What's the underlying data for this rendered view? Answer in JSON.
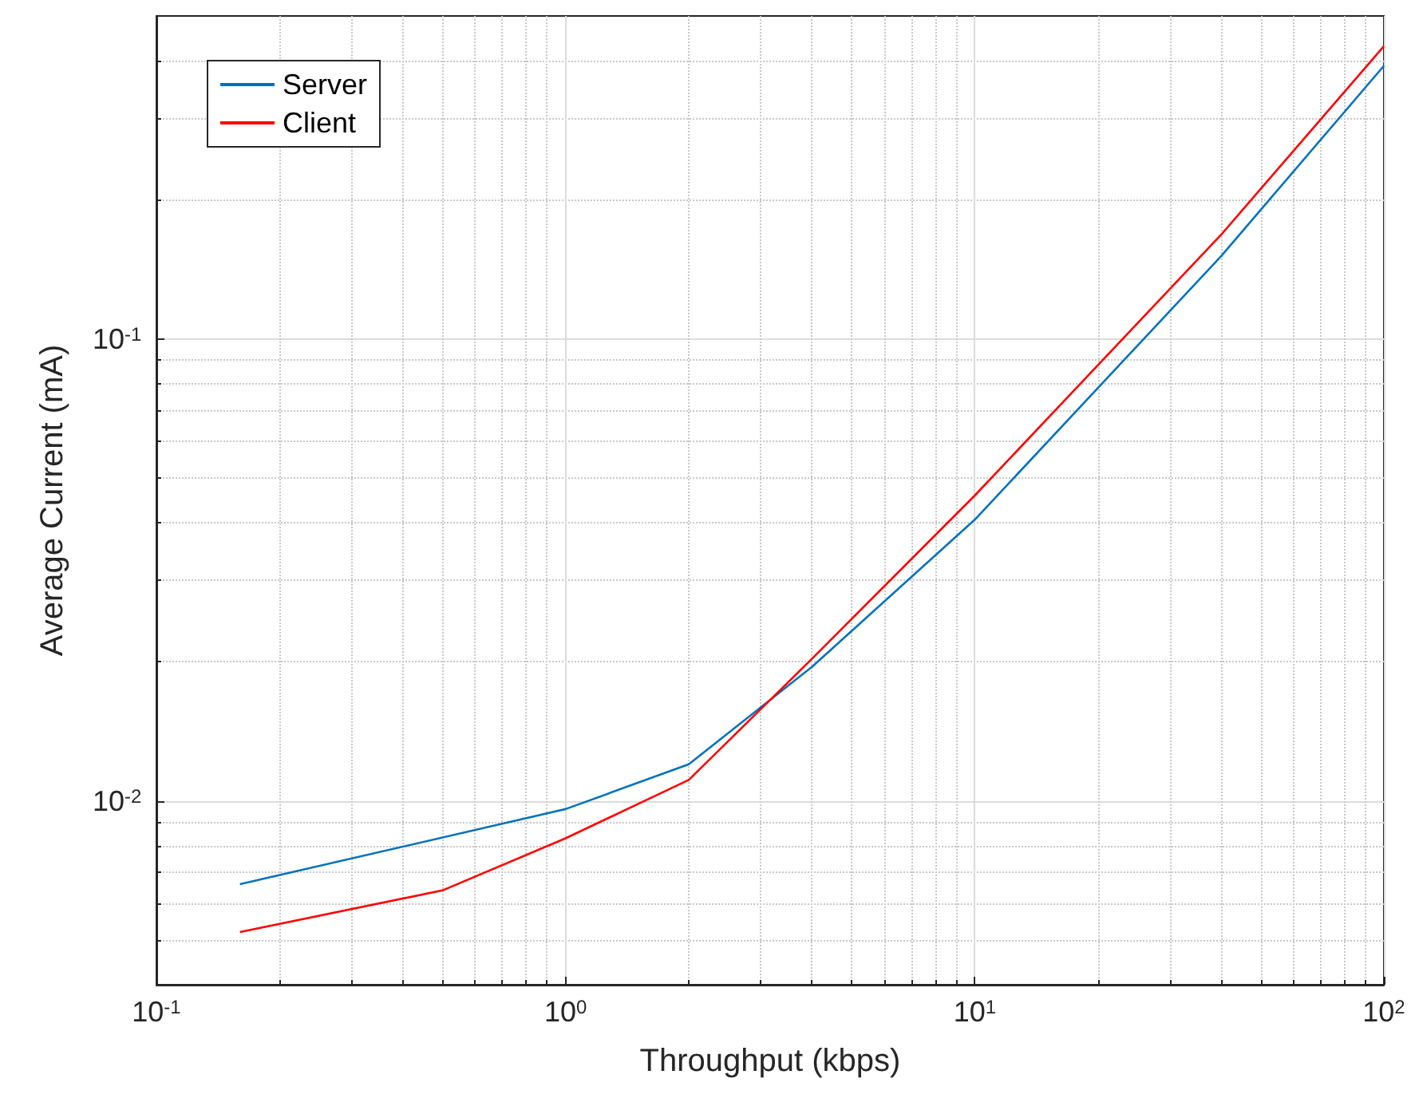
{
  "chart_data": {
    "type": "line",
    "xlabel": "Throughput (kbps)",
    "ylabel": "Average Current (mA)",
    "log": "xy",
    "xlim": [
      0.1,
      100
    ],
    "xticks": [
      {
        "value": 0.1,
        "label": "10$^{-1}$"
      },
      {
        "value": 1,
        "label": "10$^{0}$"
      },
      {
        "value": 10,
        "label": "10$^{1}$"
      },
      {
        "value": 100,
        "label": "10$^{2}$"
      }
    ],
    "ylim": [
      0.004,
      0.5
    ],
    "yticks": [
      {
        "value": 0.01,
        "label": "10$^{-2}$"
      },
      {
        "value": 0.1,
        "label": "10$^{-1}$"
      }
    ],
    "grid": true,
    "legend": "top left",
    "line_style": "solid",
    "marker": "none",
    "series": [
      {
        "name": "Server",
        "color": "#0072bd",
        "x": [
          0.16,
          1,
          2,
          4,
          10,
          40,
          100
        ],
        "values": [
          0.0066,
          0.0096,
          0.012,
          0.0195,
          0.0406,
          0.151,
          0.39
        ]
      },
      {
        "name": "Client",
        "color": "#ff0000",
        "x": [
          0.16,
          0.5,
          1,
          2,
          4,
          10,
          40,
          100
        ],
        "values": [
          0.0052,
          0.0064,
          0.0083,
          0.0111,
          0.0203,
          0.0458,
          0.168,
          0.43
        ]
      }
    ]
  }
}
